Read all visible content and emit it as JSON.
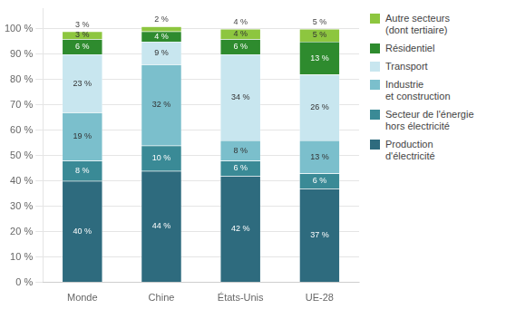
{
  "chart_data": {
    "type": "bar",
    "stacked": true,
    "categories": [
      "Monde",
      "Chine",
      "États-Unis",
      "UE-28"
    ],
    "series": [
      {
        "name": "Production\nd'électricité",
        "color": "#2e6b7e",
        "values": [
          40,
          44,
          42,
          37
        ],
        "value_labels": [
          "40 %",
          "44 %",
          "42 %",
          "37 %"
        ]
      },
      {
        "name": "Secteur de l'énergie\nhors électricité",
        "color": "#3a8a96",
        "values": [
          8,
          10,
          6,
          6
        ],
        "value_labels": [
          "8 %",
          "10 %",
          "6 %",
          "6 %"
        ]
      },
      {
        "name": "Industrie\net construction",
        "color": "#7bbfcc",
        "values": [
          19,
          32,
          8,
          13
        ],
        "value_labels": [
          "19 %",
          "32 %",
          "8 %",
          "13 %"
        ]
      },
      {
        "name": "Transport",
        "color": "#c8e6ef",
        "values": [
          23,
          9,
          34,
          26
        ],
        "value_labels": [
          "23 %",
          "9 %",
          "34 %",
          "26 %"
        ]
      },
      {
        "name": "Résidentiel",
        "color": "#2e8b2e",
        "values": [
          6,
          4,
          6,
          13
        ],
        "value_labels": [
          "6 %",
          "4 %",
          "6 %",
          "13 %"
        ]
      },
      {
        "name": "Autre secteurs\n(dont tertiaire)",
        "color": "#8dc63f",
        "values": [
          3,
          2,
          4,
          5
        ],
        "value_labels": [
          "3 %",
          null,
          "4 %",
          "5 %"
        ]
      }
    ],
    "annotations": [
      {
        "category": "Monde",
        "text": "3 %"
      },
      {
        "category": "Chine",
        "text": "2 %"
      },
      {
        "category": "États-Unis",
        "text": "4 %"
      },
      {
        "category": "UE-28",
        "text": "5 %"
      }
    ],
    "ylim": [
      0,
      108
    ],
    "yticks": [
      {
        "value": 0,
        "label": "0 %"
      },
      {
        "value": 10,
        "label": "10 %"
      },
      {
        "value": 20,
        "label": "20 %"
      },
      {
        "value": 30,
        "label": "30 %"
      },
      {
        "value": 40,
        "label": "40 %"
      },
      {
        "value": 50,
        "label": "50 %"
      },
      {
        "value": 60,
        "label": "60 %"
      },
      {
        "value": 70,
        "label": "70 %"
      },
      {
        "value": 80,
        "label": "80 %"
      },
      {
        "value": 90,
        "label": "90 %"
      },
      {
        "value": 100,
        "label": "100 %"
      }
    ],
    "grid": true,
    "legend": "right",
    "data_labels": true
  }
}
